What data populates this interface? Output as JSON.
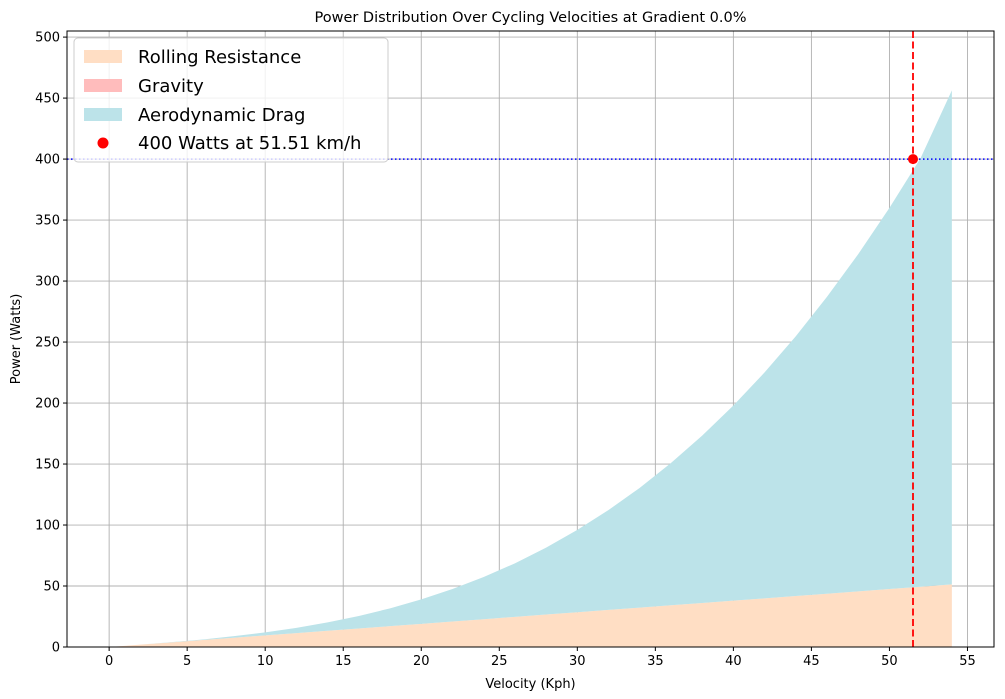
{
  "chart_data": {
    "type": "area",
    "title": "Power Distribution Over Cycling Velocities at Gradient 0.0%",
    "xlabel": "Velocity (Kph)",
    "ylabel": "Power (Watts)",
    "xlim": [
      -2.7,
      56.7
    ],
    "ylim": [
      0,
      505
    ],
    "x_ticks": [
      0,
      5,
      10,
      15,
      20,
      25,
      30,
      35,
      40,
      45,
      50,
      55
    ],
    "y_ticks": [
      0,
      50,
      100,
      150,
      200,
      250,
      300,
      350,
      400,
      450,
      500
    ],
    "grid": true,
    "legend_position": "top-left",
    "stacked": true,
    "series": [
      {
        "name": "Rolling Resistance",
        "color": "#ffdec4",
        "x": [
          0,
          2,
          4,
          6,
          8,
          10,
          12,
          14,
          16,
          18,
          20,
          22,
          24,
          26,
          28,
          30,
          32,
          34,
          36,
          38,
          40,
          42,
          44,
          46,
          48,
          50,
          52,
          54
        ],
        "values": [
          0,
          1.9,
          3.8,
          5.7,
          7.6,
          9.5,
          11.4,
          13.3,
          15.2,
          17.1,
          19.0,
          20.9,
          22.8,
          24.7,
          26.6,
          28.5,
          30.4,
          32.3,
          34.2,
          36.1,
          38.0,
          39.9,
          41.8,
          43.7,
          45.6,
          47.5,
          49.4,
          51.3
        ]
      },
      {
        "name": "Gravity",
        "color": "#ffbcbc",
        "x": [
          0,
          2,
          4,
          6,
          8,
          10,
          12,
          14,
          16,
          18,
          20,
          22,
          24,
          26,
          28,
          30,
          32,
          34,
          36,
          38,
          40,
          42,
          44,
          46,
          48,
          50,
          52,
          54
        ],
        "values": [
          0,
          0,
          0,
          0,
          0,
          0,
          0,
          0,
          0,
          0,
          0,
          0,
          0,
          0,
          0,
          0,
          0,
          0,
          0,
          0,
          0,
          0,
          0,
          0,
          0,
          0,
          0,
          0
        ]
      },
      {
        "name": "Aerodynamic Drag",
        "color": "#bce3e9",
        "x": [
          0,
          2,
          4,
          6,
          8,
          10,
          12,
          14,
          16,
          18,
          20,
          22,
          24,
          26,
          28,
          30,
          32,
          34,
          36,
          38,
          40,
          42,
          44,
          46,
          48,
          50,
          52,
          54
        ],
        "values": [
          0,
          0.0,
          0.2,
          0.5,
          1.3,
          2.5,
          4.3,
          6.9,
          10.2,
          14.6,
          20.0,
          26.6,
          34.6,
          43.9,
          54.9,
          67.5,
          81.9,
          98.2,
          116.6,
          137.2,
          160.0,
          185.2,
          213.0,
          243.4,
          276.5,
          312.5,
          351.5,
          405.0
        ]
      }
    ],
    "marker": {
      "label": "400 Watts at 51.51 km/h",
      "x": 51.51,
      "y": 400,
      "color": "#ff0000"
    },
    "reference_lines": {
      "horizontal_y": 400,
      "horizontal_color": "#0000ff",
      "vertical_x": 51.51,
      "vertical_color": "#ff0000"
    }
  }
}
